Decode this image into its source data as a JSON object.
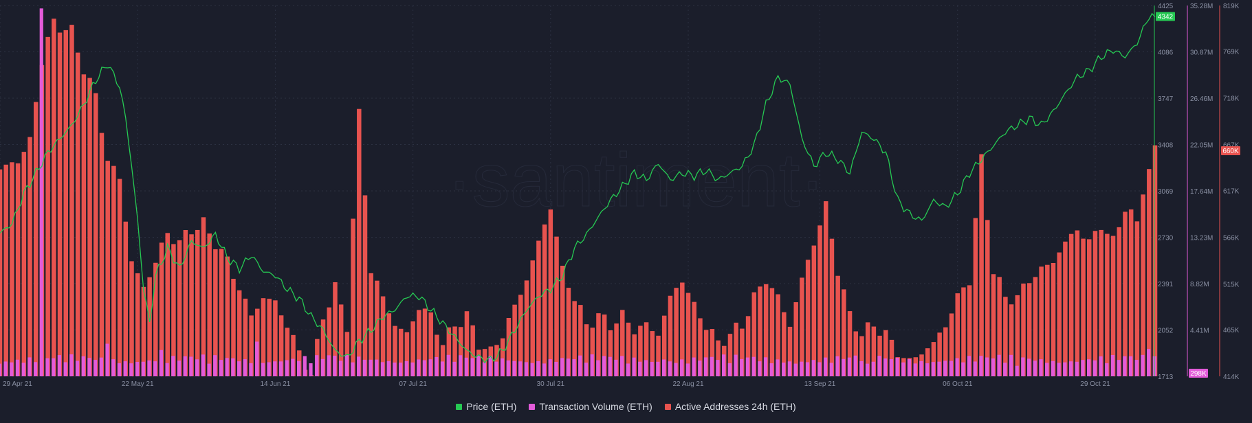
{
  "watermark": "·santiment·",
  "chart_data": {
    "type": "line+bar",
    "x_tick_labels": [
      "29 Apr 21",
      "22 May 21",
      "14 Jun 21",
      "07 Jul 21",
      "30 Jul 21",
      "22 Aug 21",
      "13 Sep 21",
      "06 Oct 21",
      "29 Oct 21"
    ],
    "x_tick_days": [
      0,
      23,
      46,
      69,
      92,
      115,
      137,
      160,
      183
    ],
    "series": [
      {
        "name": "Price (ETH)",
        "kind": "line",
        "color": "#26c953",
        "axis": {
          "min": 1713,
          "max": 4425,
          "ticks": [
            "4425",
            "4086",
            "3747",
            "3408",
            "3069",
            "2730",
            "2391",
            "2052",
            "1713"
          ]
        },
        "last_label": "4342",
        "points": [
          [
            0,
            2760
          ],
          [
            2,
            2830
          ],
          [
            4,
            3050
          ],
          [
            6,
            3200
          ],
          [
            8,
            3350
          ],
          [
            10,
            3450
          ],
          [
            12,
            3550
          ],
          [
            14,
            3700
          ],
          [
            16,
            3880
          ],
          [
            18,
            4000
          ],
          [
            20,
            3830
          ],
          [
            21,
            3600
          ],
          [
            22,
            3250
          ],
          [
            23,
            2850
          ],
          [
            24,
            2350
          ],
          [
            25,
            2100
          ],
          [
            26,
            2450
          ],
          [
            28,
            2650
          ],
          [
            30,
            2500
          ],
          [
            32,
            2700
          ],
          [
            34,
            2650
          ],
          [
            36,
            2750
          ],
          [
            38,
            2580
          ],
          [
            40,
            2500
          ],
          [
            42,
            2600
          ],
          [
            44,
            2480
          ],
          [
            46,
            2450
          ],
          [
            48,
            2350
          ],
          [
            50,
            2280
          ],
          [
            52,
            2150
          ],
          [
            54,
            2050
          ],
          [
            56,
            1900
          ],
          [
            58,
            1850
          ],
          [
            60,
            1970
          ],
          [
            62,
            2050
          ],
          [
            64,
            2150
          ],
          [
            66,
            2200
          ],
          [
            68,
            2300
          ],
          [
            70,
            2300
          ],
          [
            72,
            2200
          ],
          [
            74,
            2100
          ],
          [
            76,
            2000
          ],
          [
            78,
            1900
          ],
          [
            80,
            1850
          ],
          [
            82,
            1830
          ],
          [
            84,
            1900
          ],
          [
            86,
            2050
          ],
          [
            88,
            2200
          ],
          [
            90,
            2300
          ],
          [
            92,
            2350
          ],
          [
            94,
            2450
          ],
          [
            96,
            2650
          ],
          [
            98,
            2750
          ],
          [
            100,
            2880
          ],
          [
            102,
            3000
          ],
          [
            104,
            3100
          ],
          [
            106,
            3200
          ],
          [
            108,
            3150
          ],
          [
            110,
            3270
          ],
          [
            112,
            3150
          ],
          [
            114,
            3200
          ],
          [
            116,
            3180
          ],
          [
            118,
            3220
          ],
          [
            120,
            3150
          ],
          [
            122,
            3200
          ],
          [
            124,
            3250
          ],
          [
            126,
            3400
          ],
          [
            128,
            3700
          ],
          [
            130,
            3900
          ],
          [
            132,
            3850
          ],
          [
            134,
            3450
          ],
          [
            136,
            3250
          ],
          [
            138,
            3350
          ],
          [
            140,
            3300
          ],
          [
            142,
            3200
          ],
          [
            144,
            3500
          ],
          [
            146,
            3450
          ],
          [
            148,
            3350
          ],
          [
            150,
            3000
          ],
          [
            152,
            2900
          ],
          [
            154,
            2850
          ],
          [
            156,
            3000
          ],
          [
            158,
            2950
          ],
          [
            160,
            3050
          ],
          [
            162,
            3200
          ],
          [
            164,
            3300
          ],
          [
            166,
            3400
          ],
          [
            168,
            3500
          ],
          [
            170,
            3550
          ],
          [
            172,
            3600
          ],
          [
            174,
            3550
          ],
          [
            176,
            3650
          ],
          [
            178,
            3780
          ],
          [
            180,
            3900
          ],
          [
            182,
            3950
          ],
          [
            184,
            4050
          ],
          [
            186,
            4100
          ],
          [
            188,
            4050
          ],
          [
            190,
            4150
          ],
          [
            192,
            4350
          ],
          [
            193,
            4342
          ]
        ]
      },
      {
        "name": "Transaction Volume (ETH)",
        "kind": "bar",
        "color": "#e35bd9",
        "axis": {
          "min": 0,
          "max": 35.28,
          "unit": "M",
          "ticks": [
            "35.28M",
            "30.87M",
            "26.46M",
            "22.05M",
            "17.64M",
            "13.23M",
            "8.82M",
            "4.41M"
          ]
        },
        "last_label": "298K",
        "spikes": [
          [
            7,
            35.0
          ],
          [
            18,
            3.1
          ],
          [
            27,
            2.5
          ],
          [
            43,
            3.3
          ],
          [
            55,
            2.0
          ],
          [
            111,
            1.6
          ],
          [
            145,
            1.2
          ],
          [
            170,
            1.0
          ],
          [
            192,
            2.6
          ]
        ]
      },
      {
        "name": "Active Addresses 24h (ETH)",
        "kind": "bar",
        "color": "#e8534f",
        "axis": {
          "min": 414,
          "max": 819,
          "unit": "K",
          "ticks": [
            "819K",
            "769K",
            "718K",
            "667K",
            "617K",
            "566K",
            "515K",
            "465K",
            "414K"
          ]
        },
        "last_label": "660K",
        "points": [
          [
            0,
            640
          ],
          [
            3,
            650
          ],
          [
            5,
            670
          ],
          [
            7,
            760
          ],
          [
            9,
            800
          ],
          [
            12,
            790
          ],
          [
            14,
            750
          ],
          [
            16,
            720
          ],
          [
            18,
            650
          ],
          [
            20,
            630
          ],
          [
            22,
            540
          ],
          [
            24,
            510
          ],
          [
            26,
            540
          ],
          [
            28,
            570
          ],
          [
            30,
            560
          ],
          [
            32,
            575
          ],
          [
            34,
            580
          ],
          [
            36,
            560
          ],
          [
            38,
            540
          ],
          [
            40,
            510
          ],
          [
            42,
            480
          ],
          [
            44,
            500
          ],
          [
            46,
            495
          ],
          [
            48,
            470
          ],
          [
            50,
            440
          ],
          [
            52,
            415
          ],
          [
            54,
            480
          ],
          [
            56,
            510
          ],
          [
            58,
            470
          ],
          [
            60,
            700
          ],
          [
            62,
            530
          ],
          [
            64,
            500
          ],
          [
            66,
            470
          ],
          [
            68,
            460
          ],
          [
            70,
            490
          ],
          [
            72,
            480
          ],
          [
            74,
            450
          ],
          [
            76,
            470
          ],
          [
            78,
            480
          ],
          [
            80,
            450
          ],
          [
            82,
            440
          ],
          [
            84,
            460
          ],
          [
            86,
            490
          ],
          [
            88,
            520
          ],
          [
            90,
            560
          ],
          [
            92,
            600
          ],
          [
            94,
            530
          ],
          [
            96,
            500
          ],
          [
            98,
            470
          ],
          [
            100,
            480
          ],
          [
            102,
            470
          ],
          [
            104,
            480
          ],
          [
            106,
            465
          ],
          [
            108,
            470
          ],
          [
            110,
            460
          ],
          [
            112,
            500
          ],
          [
            114,
            520
          ],
          [
            116,
            490
          ],
          [
            118,
            470
          ],
          [
            120,
            450
          ],
          [
            122,
            460
          ],
          [
            124,
            470
          ],
          [
            126,
            500
          ],
          [
            128,
            520
          ],
          [
            130,
            500
          ],
          [
            132,
            470
          ],
          [
            134,
            520
          ],
          [
            136,
            560
          ],
          [
            138,
            600
          ],
          [
            140,
            530
          ],
          [
            142,
            480
          ],
          [
            144,
            460
          ],
          [
            146,
            470
          ],
          [
            148,
            460
          ],
          [
            150,
            440
          ],
          [
            152,
            430
          ],
          [
            154,
            440
          ],
          [
            156,
            450
          ],
          [
            158,
            470
          ],
          [
            160,
            500
          ],
          [
            162,
            520
          ],
          [
            164,
            650
          ],
          [
            166,
            530
          ],
          [
            168,
            500
          ],
          [
            170,
            500
          ],
          [
            172,
            520
          ],
          [
            174,
            530
          ],
          [
            176,
            540
          ],
          [
            178,
            560
          ],
          [
            180,
            575
          ],
          [
            182,
            560
          ],
          [
            184,
            580
          ],
          [
            186,
            560
          ],
          [
            188,
            600
          ],
          [
            190,
            580
          ],
          [
            191,
            620
          ],
          [
            192,
            640
          ],
          [
            193,
            660
          ]
        ]
      }
    ]
  }
}
